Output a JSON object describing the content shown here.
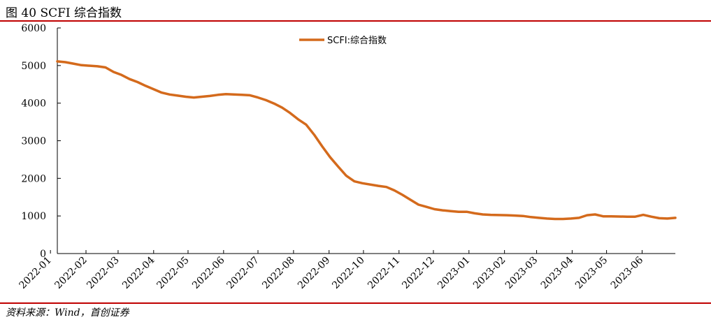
{
  "figure_title": "图 40 SCFI 综合指数",
  "source_note": "资料来源：Wind，首创证券",
  "colors": {
    "line": "#d46a1c",
    "rule": "#c00000",
    "axis": "#000000"
  },
  "chart_data": {
    "type": "line",
    "title": "",
    "xlabel": "",
    "ylabel": "",
    "ylim": [
      0,
      6000
    ],
    "yticks": [
      0,
      1000,
      2000,
      3000,
      4000,
      5000,
      6000
    ],
    "xticks": [
      "2022-01",
      "2022-02",
      "2022-03",
      "2022-04",
      "2022-05",
      "2022-06",
      "2022-07",
      "2022-08",
      "2022-09",
      "2022-10",
      "2022-11",
      "2022-12",
      "2023-01",
      "2023-02",
      "2023-03",
      "2023-04",
      "2023-05",
      "2023-06"
    ],
    "xlim": [
      "2022-01-07",
      "2023-06-30"
    ],
    "grid": false,
    "legend": {
      "entries": [
        "SCFI:综合指数"
      ],
      "position": "top-center"
    },
    "series": [
      {
        "name": "SCFI:综合指数",
        "x": [
          "2022-01-07",
          "2022-01-14",
          "2022-01-21",
          "2022-01-28",
          "2022-02-11",
          "2022-02-18",
          "2022-02-25",
          "2022-03-04",
          "2022-03-11",
          "2022-03-18",
          "2022-03-25",
          "2022-04-01",
          "2022-04-08",
          "2022-04-15",
          "2022-04-22",
          "2022-04-29",
          "2022-05-06",
          "2022-05-13",
          "2022-05-20",
          "2022-05-27",
          "2022-06-03",
          "2022-06-10",
          "2022-06-17",
          "2022-06-24",
          "2022-07-01",
          "2022-07-08",
          "2022-07-15",
          "2022-07-22",
          "2022-07-29",
          "2022-08-05",
          "2022-08-12",
          "2022-08-19",
          "2022-08-26",
          "2022-09-02",
          "2022-09-09",
          "2022-09-16",
          "2022-09-23",
          "2022-09-30",
          "2022-10-14",
          "2022-10-21",
          "2022-10-28",
          "2022-11-04",
          "2022-11-11",
          "2022-11-18",
          "2022-11-25",
          "2022-12-02",
          "2022-12-09",
          "2022-12-16",
          "2022-12-23",
          "2022-12-30",
          "2023-01-06",
          "2023-01-13",
          "2023-01-20",
          "2023-02-03",
          "2023-02-10",
          "2023-02-17",
          "2023-02-24",
          "2023-03-03",
          "2023-03-10",
          "2023-03-17",
          "2023-03-24",
          "2023-03-31",
          "2023-04-07",
          "2023-04-14",
          "2023-04-21",
          "2023-04-28",
          "2023-05-05",
          "2023-05-12",
          "2023-05-19",
          "2023-05-26",
          "2023-06-02",
          "2023-06-09",
          "2023-06-16",
          "2023-06-23",
          "2023-06-30"
        ],
        "values": [
          5110,
          5090,
          5050,
          5010,
          4980,
          4950,
          4830,
          4750,
          4640,
          4560,
          4460,
          4370,
          4280,
          4230,
          4200,
          4170,
          4150,
          4170,
          4190,
          4220,
          4240,
          4230,
          4220,
          4210,
          4150,
          4080,
          3990,
          3880,
          3740,
          3570,
          3430,
          3160,
          2850,
          2560,
          2310,
          2070,
          1920,
          1870,
          1800,
          1770,
          1680,
          1560,
          1430,
          1300,
          1240,
          1180,
          1150,
          1130,
          1110,
          1110,
          1070,
          1040,
          1030,
          1020,
          1010,
          1000,
          970,
          950,
          930,
          920,
          920,
          930,
          950,
          1020,
          1040,
          990,
          990,
          985,
          980,
          980,
          1030,
          980,
          940,
          930,
          950
        ]
      }
    ]
  }
}
